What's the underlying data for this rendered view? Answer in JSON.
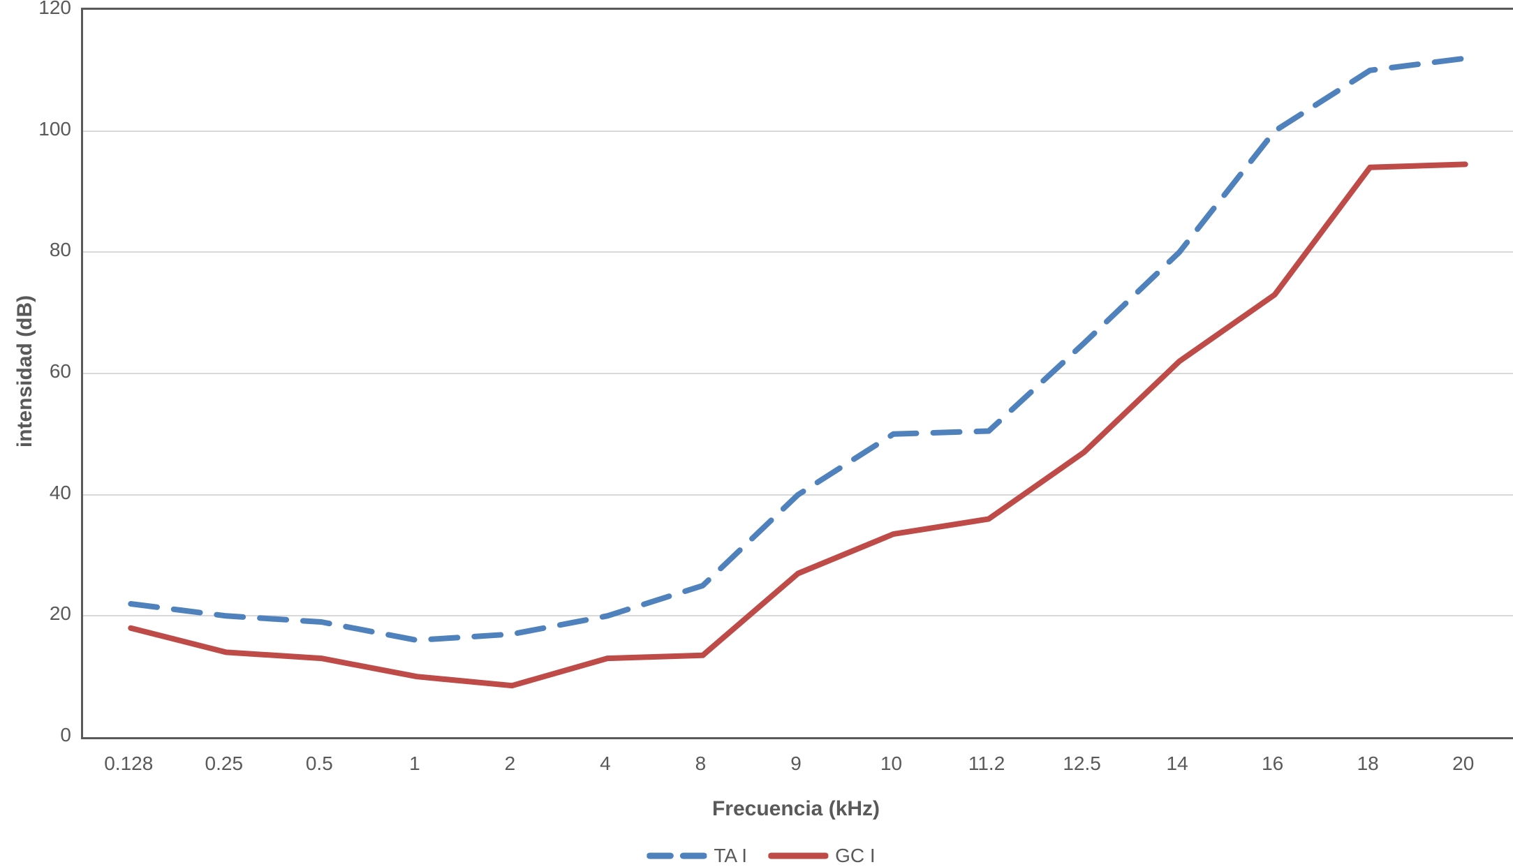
{
  "chart_data": {
    "type": "line",
    "title": "",
    "xlabel": "Frecuencia (kHz)",
    "ylabel": "intensidad (dB)",
    "categories": [
      "0.128",
      "0.25",
      "0.5",
      "1",
      "2",
      "4",
      "8",
      "9",
      "10",
      "11.2",
      "12.5",
      "14",
      "16",
      "18",
      "20"
    ],
    "series": [
      {
        "name": "TA I",
        "style": "dashed",
        "color": "#4F81BD",
        "values": [
          22,
          20,
          19,
          16,
          17,
          20,
          25,
          40,
          50,
          50.5,
          65,
          80,
          100,
          110,
          112
        ]
      },
      {
        "name": "GC I",
        "style": "solid",
        "color": "#BE4B48",
        "values": [
          18,
          14,
          13,
          10,
          8.5,
          13,
          13.5,
          27,
          33.5,
          36,
          47,
          62,
          73,
          94,
          94.5
        ]
      }
    ],
    "ylim": [
      0,
      120
    ],
    "ytick_step": 20,
    "grid": "horizontal",
    "legend_position": "bottom"
  },
  "colors": {
    "axis_line": "#595959",
    "gridline": "#d9d9d9",
    "text": "#595959",
    "background": "#ffffff"
  }
}
